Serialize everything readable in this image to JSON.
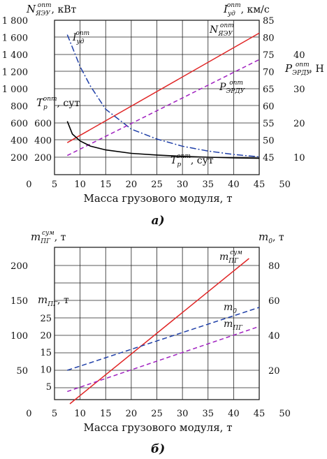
{
  "chart_data": [
    {
      "type": "line",
      "caption": "а)",
      "xlabel": "Масса грузового модуля, т",
      "xlim": [
        0,
        50
      ],
      "x_ticks": [
        "0",
        "5",
        "10",
        "15",
        "20",
        "25",
        "30",
        "35",
        "40",
        "45",
        "50"
      ],
      "axis_left_top": {
        "symbol": "N",
        "sup": "опт",
        "sub": "ЯЭУ",
        "unit": ", кВт"
      },
      "axis_left_inner": {
        "symbol": "T",
        "sup": "опт",
        "sub": "р",
        "unit": ", сут"
      },
      "axis_right_top": {
        "symbol": "I",
        "sup": "опт",
        "sub": "уд",
        "unit": ", км/с"
      },
      "axis_right_outer": {
        "symbol": "P",
        "sup": "опт",
        "sub": "ЭРДУ",
        "unit": ", Н"
      },
      "left_ticks": [
        "1 800",
        "1 600",
        "1 400",
        "1 200",
        "1 000",
        "800",
        "600",
        "400",
        "200"
      ],
      "left_inner_ticks": [
        "600",
        "400",
        "200"
      ],
      "right_ticks": [
        "85",
        "80",
        "75",
        "70",
        "65",
        "60",
        "55",
        "50",
        "45"
      ],
      "right_outer_ticks": [
        "40",
        "30",
        "20",
        "10"
      ],
      "series": [
        {
          "name": "N_ЯЭУ",
          "label": {
            "symbol": "N",
            "sup": "опт",
            "sub": "ЯЭУ"
          },
          "color": "#e02424",
          "dash": "",
          "scale": "N",
          "x": [
            7.5,
            45
          ],
          "y": [
            370,
            1650
          ]
        },
        {
          "name": "I_уд",
          "label": {
            "symbol": "I",
            "sup": "опт",
            "sub": "уд"
          },
          "color": "#1f3fa8",
          "dash": "9 3 2 3",
          "scale": "I",
          "x": [
            7.5,
            10,
            12,
            15,
            20,
            25,
            30,
            35,
            40,
            45
          ],
          "y": [
            80.8,
            71.5,
            65.8,
            59.0,
            53.2,
            50.3,
            48.2,
            46.8,
            45.8,
            45.1
          ]
        },
        {
          "name": "P_ЭРДУ",
          "label": {
            "symbol": "P",
            "sup": "опт",
            "sub": "ЭРДУ"
          },
          "color": "#a020c0",
          "dash": "6 4",
          "scale": "P",
          "x": [
            7.5,
            45
          ],
          "y": [
            10.5,
            38.5
          ]
        },
        {
          "name": "T_р",
          "label": {
            "symbol": "T",
            "sup": "опт",
            "sub": "р",
            "unit": ", сут"
          },
          "color": "#000000",
          "dash": "",
          "scale": "T",
          "x": [
            7.5,
            8.5,
            10,
            12,
            15,
            20,
            25,
            30,
            35,
            40,
            45
          ],
          "y": [
            620,
            470,
            390,
            330,
            285,
            245,
            225,
            210,
            200,
            192,
            187
          ]
        }
      ]
    },
    {
      "type": "line",
      "caption": "б)",
      "xlabel": "Масса грузового модуля, т",
      "xlim": [
        0,
        50
      ],
      "x_ticks": [
        "0",
        "5",
        "10",
        "15",
        "20",
        "25",
        "30",
        "35",
        "40",
        "45",
        "50"
      ],
      "axis_left_top": {
        "symbol": "m",
        "sup": "сум",
        "sub": "ПГ",
        "unit": ", т"
      },
      "axis_left_inner": {
        "symbol": "m",
        "sup": "",
        "sub": "ПГ",
        "unit": ", т"
      },
      "axis_right_top": {
        "symbol": "m",
        "sup": "",
        "sub": "0",
        "unit": ", т"
      },
      "left_ticks": [
        "200",
        "150",
        "100",
        "50"
      ],
      "left_inner_ticks": [
        "25",
        "20",
        "15",
        "10",
        "5"
      ],
      "right_ticks": [
        "80",
        "60",
        "40",
        "20"
      ],
      "series": [
        {
          "name": "m_ПГ_сум",
          "label": {
            "symbol": "m",
            "sup": "сум",
            "sub": "ПГ"
          },
          "color": "#e02424",
          "dash": "",
          "scale": "S",
          "x": [
            8,
            43
          ],
          "y": [
            2,
            210
          ]
        },
        {
          "name": "m_0",
          "label": {
            "symbol": "m",
            "sup": "",
            "sub": "0"
          },
          "color": "#1f3fa8",
          "dash": "7 4",
          "scale": "M0",
          "x": [
            7.5,
            45
          ],
          "y": [
            20,
            56
          ]
        },
        {
          "name": "m_ПГ",
          "label": {
            "symbol": "m",
            "sup": "",
            "sub": "ПГ"
          },
          "color": "#a020c0",
          "dash": "6 4",
          "scale": "MPG",
          "x": [
            7.5,
            45
          ],
          "y": [
            3.5,
            22.5
          ]
        }
      ]
    }
  ]
}
